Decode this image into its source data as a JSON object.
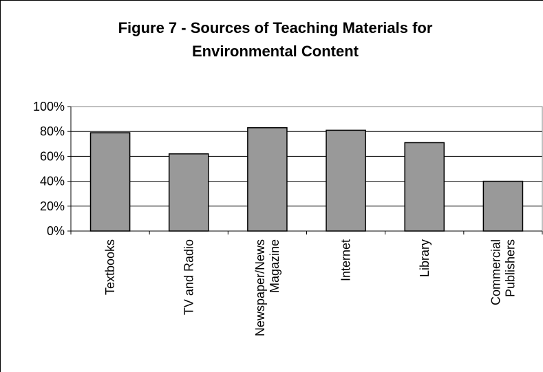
{
  "chart_data": {
    "type": "bar",
    "title": "Figure 7 - Sources of Teaching Materials for Environmental Content",
    "categories": [
      "Textbooks",
      "TV and Radio",
      "Newspaper/News Magazine",
      "Internet",
      "Library",
      "Commercial Publishers"
    ],
    "values": [
      79,
      62,
      83,
      81,
      71,
      40
    ],
    "color": "#999999",
    "ylim": [
      0,
      100
    ],
    "yticks": [
      {
        "value": 0,
        "label": "0%"
      },
      {
        "value": 20,
        "label": "20%"
      },
      {
        "value": 40,
        "label": "40%"
      },
      {
        "value": 60,
        "label": "60%"
      },
      {
        "value": 80,
        "label": "80%"
      },
      {
        "value": 100,
        "label": "100%"
      }
    ],
    "grid": true
  }
}
